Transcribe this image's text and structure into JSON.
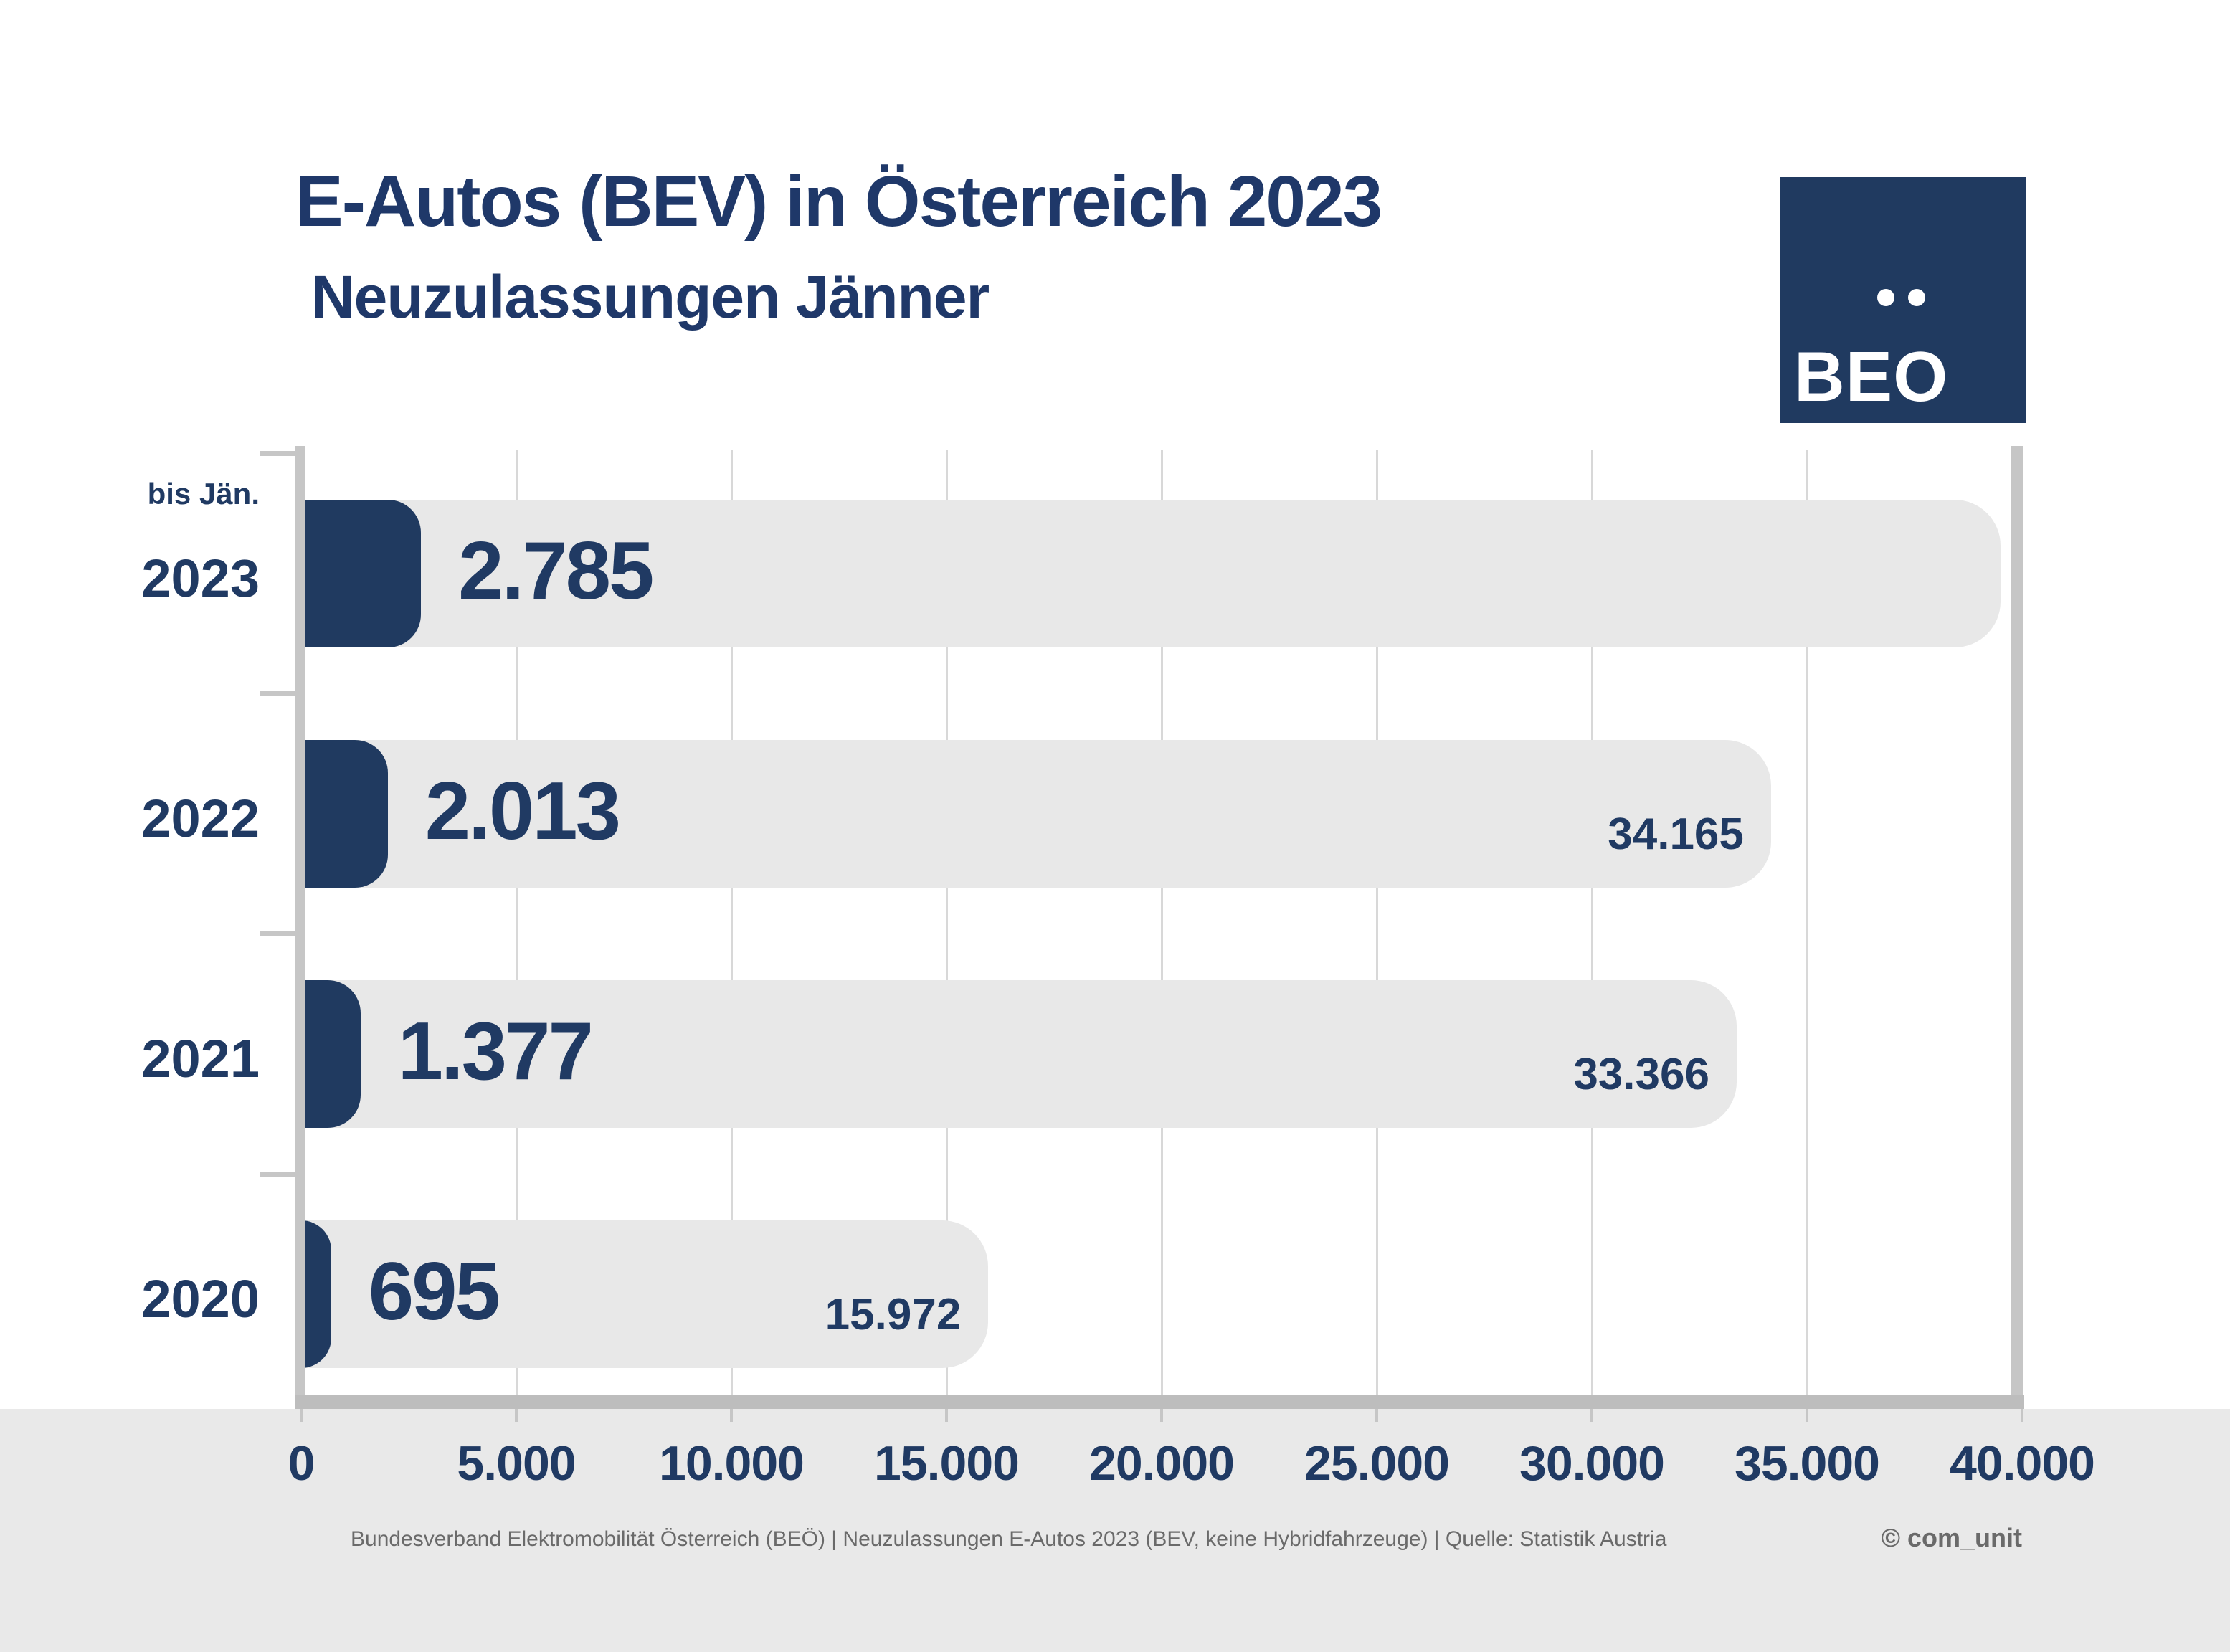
{
  "header": {
    "title": "E-Autos (BEV) in Österreich 2023",
    "subtitle": "Neuzulassungen Jänner"
  },
  "logo": {
    "text": "BEO",
    "umlaut_dots": 2,
    "background_color": "#203a60",
    "text_color": "#ffffff"
  },
  "chart_data": {
    "type": "bar",
    "orientation": "horizontal",
    "title": "E-Autos (BEV) in Österreich 2023",
    "subtitle": "Neuzulassungen Jänner",
    "xlabel": "",
    "ylabel": "",
    "xlim": [
      0,
      40000
    ],
    "grid": "vertical",
    "x_ticks": [
      {
        "value": 0,
        "label": "0"
      },
      {
        "value": 5000,
        "label": "5.000"
      },
      {
        "value": 10000,
        "label": "10.000"
      },
      {
        "value": 15000,
        "label": "15.000"
      },
      {
        "value": 20000,
        "label": "20.000"
      },
      {
        "value": 25000,
        "label": "25.000"
      },
      {
        "value": 30000,
        "label": "30.000"
      },
      {
        "value": 35000,
        "label": "35.000"
      },
      {
        "value": 40000,
        "label": "40.000"
      }
    ],
    "series": [
      {
        "name": "Neuzulassungen Jänner",
        "color": "#203a60"
      },
      {
        "name": "Jahresgesamtwert",
        "color": "#e8e8e8"
      }
    ],
    "rows": [
      {
        "year": "2023",
        "year_prefix": "bis Jän.",
        "january": {
          "value": 2785,
          "label": "2.785"
        },
        "total": {
          "value": 39500,
          "label": null
        }
      },
      {
        "year": "2022",
        "year_prefix": null,
        "january": {
          "value": 2013,
          "label": "2.013"
        },
        "total": {
          "value": 34165,
          "label": "34.165"
        }
      },
      {
        "year": "2021",
        "year_prefix": null,
        "january": {
          "value": 1377,
          "label": "1.377"
        },
        "total": {
          "value": 33366,
          "label": "33.366"
        }
      },
      {
        "year": "2020",
        "year_prefix": null,
        "january": {
          "value": 695,
          "label": "695"
        },
        "total": {
          "value": 15972,
          "label": "15.972"
        }
      }
    ]
  },
  "footer": {
    "source": "Bundesverband Elektromobilität Österreich (BEÖ) | Neuzulassungen E-Autos 2023 (BEV, keine Hybridfahrzeuge) | Quelle: Statistik Austria",
    "copyright": "© com_unit"
  },
  "colors": {
    "navy": "#203a60",
    "navy_text": "#203a63",
    "title": "#1f3869",
    "bar_gray": "#e8e8e8",
    "bottom_strip": "#e9e9e9",
    "gridline": "#d8d8d8",
    "axis": "#c6c6c6",
    "footer_text": "#6a6a6a"
  }
}
